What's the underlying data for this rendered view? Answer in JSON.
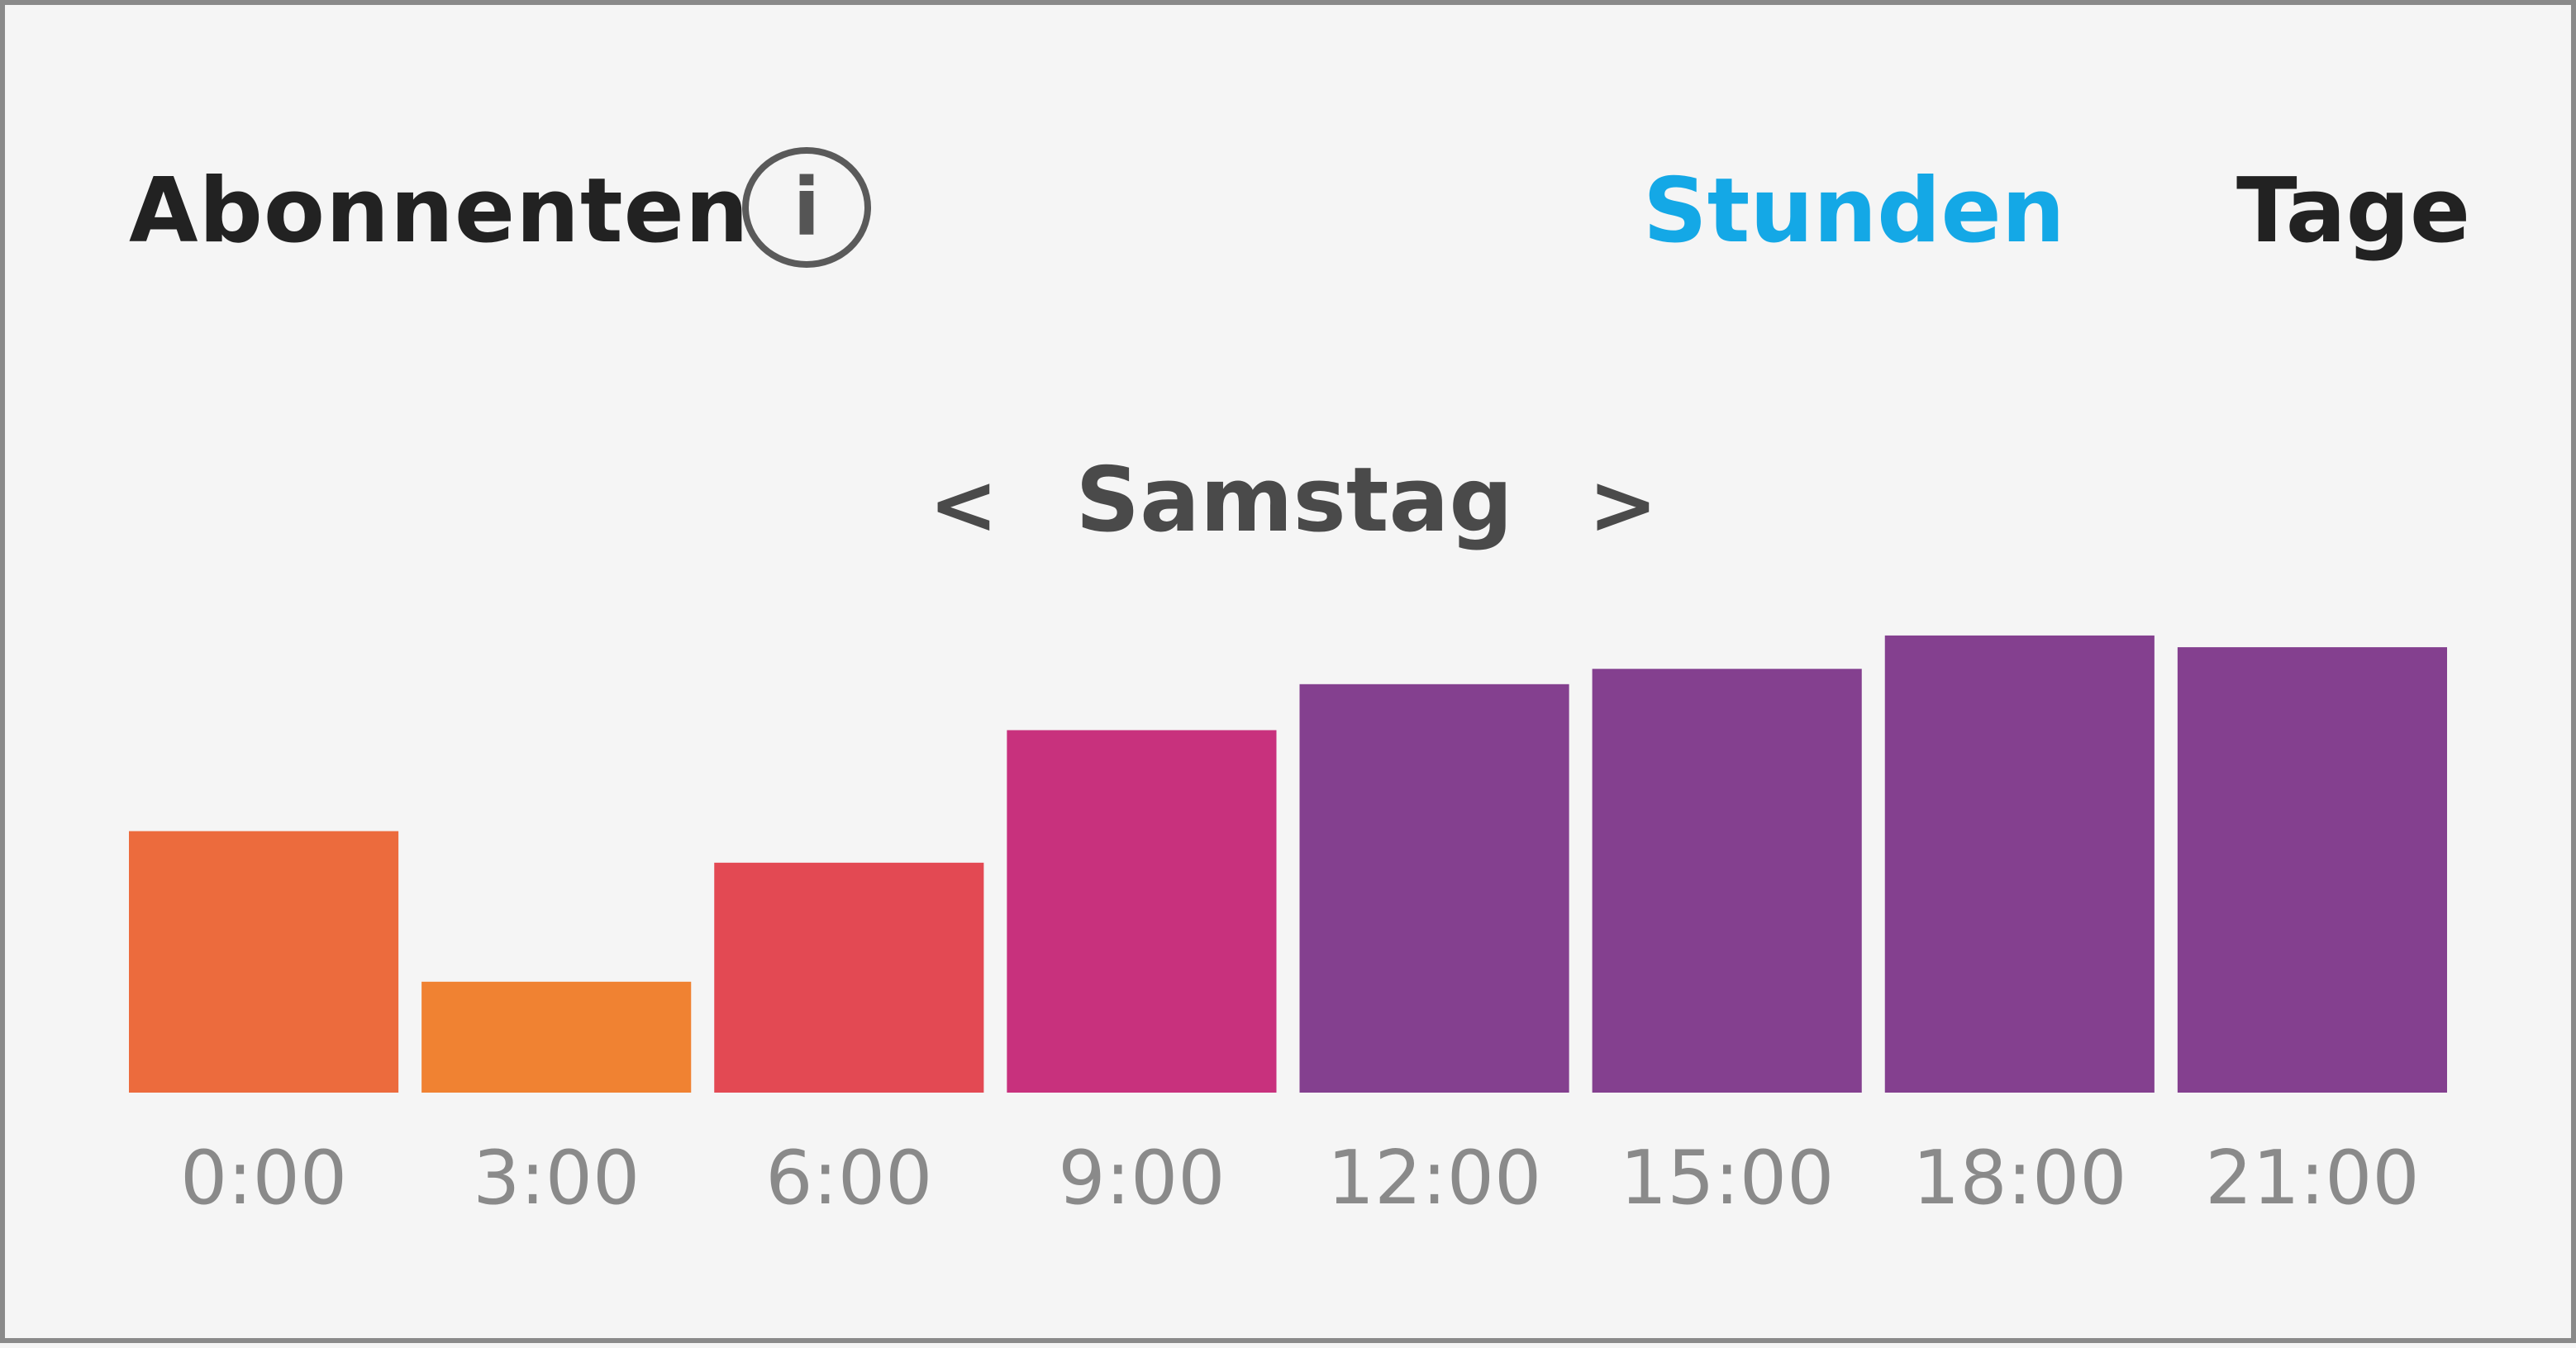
{
  "header": {
    "title": "Abonnenten",
    "info_icon": "info-icon",
    "info_glyph": "i",
    "tabs": [
      {
        "label": "Stunden",
        "active": true
      },
      {
        "label": "Tage",
        "active": false
      }
    ]
  },
  "day_nav": {
    "prev_glyph": "<",
    "day": "Samstag",
    "next_glyph": ">"
  },
  "colors": {
    "active_tab": "#14a8e6",
    "text": "#222222",
    "background": "#f5f5f5",
    "axis_label": "#8a8a8a"
  },
  "chart_data": {
    "type": "bar",
    "title": "",
    "xlabel": "",
    "ylabel": "",
    "categories": [
      "0:00",
      "3:00",
      "6:00",
      "9:00",
      "12:00",
      "15:00",
      "18:00",
      "21:00"
    ],
    "values": [
      29,
      12.3,
      25.5,
      40.2,
      45.3,
      47,
      50.7,
      49.4
    ],
    "ylim": [
      0,
      55
    ],
    "grid": false,
    "bar_colors": [
      "#ec6b3d",
      "#f08232",
      "#e34953",
      "#c8317d",
      "#84408f",
      "#84408f",
      "#84408f",
      "#84408f"
    ]
  }
}
